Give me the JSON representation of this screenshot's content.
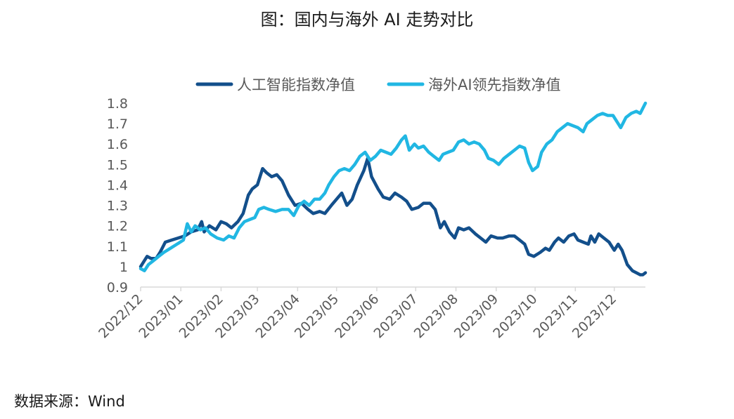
{
  "title": "图：国内与海外 AI 走势对比",
  "source": "数据来源：Wind",
  "chart_data": {
    "type": "line",
    "title": "图：国内与海外 AI 走势对比",
    "xlabel": "",
    "ylabel": "",
    "ylim": [
      0.9,
      1.8
    ],
    "yticks": [
      0.9,
      1,
      1.1,
      1.2,
      1.3,
      1.4,
      1.5,
      1.6,
      1.7,
      1.8
    ],
    "ytick_labels": [
      "0.9",
      "1",
      "1.1",
      "1.2",
      "1.3",
      "1.4",
      "1.5",
      "1.6",
      "1.7",
      "1.8"
    ],
    "xlim": [
      "2022-12-01",
      "2023-12-25"
    ],
    "xticks": [
      "2022-12-01",
      "2023-01-01",
      "2023-02-01",
      "2023-03-01",
      "2023-04-01",
      "2023-05-01",
      "2023-06-01",
      "2023-07-01",
      "2023-08-01",
      "2023-09-01",
      "2023-10-01",
      "2023-11-01",
      "2023-12-01"
    ],
    "xtick_labels": [
      "2022/12",
      "2023/01",
      "2023/02",
      "2023/03",
      "2023/04",
      "2023/05",
      "2023/06",
      "2023/07",
      "2023/08",
      "2023/09",
      "2023/10",
      "2023/11",
      "2023/12"
    ],
    "grid": false,
    "legend_position": "top",
    "series": [
      {
        "name": "人工智能指数净值",
        "color": "#134F8B",
        "points": [
          [
            "2022-12-01",
            1.0
          ],
          [
            "2022-12-04",
            1.03
          ],
          [
            "2022-12-06",
            1.05
          ],
          [
            "2022-12-09",
            1.04
          ],
          [
            "2022-12-13",
            1.04
          ],
          [
            "2022-12-16",
            1.07
          ],
          [
            "2022-12-20",
            1.12
          ],
          [
            "2022-12-25",
            1.13
          ],
          [
            "2022-12-30",
            1.14
          ],
          [
            "2023-01-04",
            1.15
          ],
          [
            "2023-01-09",
            1.17
          ],
          [
            "2023-01-14",
            1.18
          ],
          [
            "2023-01-17",
            1.22
          ],
          [
            "2023-01-19",
            1.17
          ],
          [
            "2023-01-23",
            1.2
          ],
          [
            "2023-01-28",
            1.18
          ],
          [
            "2023-02-01",
            1.22
          ],
          [
            "2023-02-05",
            1.21
          ],
          [
            "2023-02-09",
            1.19
          ],
          [
            "2023-02-14",
            1.22
          ],
          [
            "2023-02-18",
            1.26
          ],
          [
            "2023-02-22",
            1.35
          ],
          [
            "2023-02-25",
            1.38
          ],
          [
            "2023-03-01",
            1.4
          ],
          [
            "2023-03-05",
            1.48
          ],
          [
            "2023-03-08",
            1.46
          ],
          [
            "2023-03-12",
            1.44
          ],
          [
            "2023-03-16",
            1.45
          ],
          [
            "2023-03-20",
            1.42
          ],
          [
            "2023-03-25",
            1.35
          ],
          [
            "2023-03-30",
            1.3
          ],
          [
            "2023-04-04",
            1.31
          ],
          [
            "2023-04-09",
            1.28
          ],
          [
            "2023-04-13",
            1.26
          ],
          [
            "2023-04-18",
            1.27
          ],
          [
            "2023-04-22",
            1.26
          ],
          [
            "2023-04-27",
            1.3
          ],
          [
            "2023-05-01",
            1.33
          ],
          [
            "2023-05-05",
            1.36
          ],
          [
            "2023-05-09",
            1.3
          ],
          [
            "2023-05-13",
            1.33
          ],
          [
            "2023-05-17",
            1.4
          ],
          [
            "2023-05-22",
            1.47
          ],
          [
            "2023-05-25",
            1.53
          ],
          [
            "2023-05-28",
            1.44
          ],
          [
            "2023-06-02",
            1.38
          ],
          [
            "2023-06-06",
            1.34
          ],
          [
            "2023-06-11",
            1.33
          ],
          [
            "2023-06-15",
            1.36
          ],
          [
            "2023-06-20",
            1.34
          ],
          [
            "2023-06-24",
            1.32
          ],
          [
            "2023-06-28",
            1.28
          ],
          [
            "2023-07-03",
            1.29
          ],
          [
            "2023-07-07",
            1.31
          ],
          [
            "2023-07-12",
            1.31
          ],
          [
            "2023-07-16",
            1.28
          ],
          [
            "2023-07-20",
            1.19
          ],
          [
            "2023-07-23",
            1.22
          ],
          [
            "2023-07-27",
            1.17
          ],
          [
            "2023-07-31",
            1.14
          ],
          [
            "2023-08-03",
            1.19
          ],
          [
            "2023-08-07",
            1.18
          ],
          [
            "2023-08-11",
            1.19
          ],
          [
            "2023-08-16",
            1.16
          ],
          [
            "2023-08-20",
            1.14
          ],
          [
            "2023-08-24",
            1.12
          ],
          [
            "2023-08-28",
            1.15
          ],
          [
            "2023-09-02",
            1.14
          ],
          [
            "2023-09-06",
            1.14
          ],
          [
            "2023-09-11",
            1.15
          ],
          [
            "2023-09-15",
            1.15
          ],
          [
            "2023-09-19",
            1.13
          ],
          [
            "2023-09-23",
            1.11
          ],
          [
            "2023-09-26",
            1.06
          ],
          [
            "2023-09-30",
            1.05
          ],
          [
            "2023-10-05",
            1.07
          ],
          [
            "2023-10-09",
            1.09
          ],
          [
            "2023-10-12",
            1.08
          ],
          [
            "2023-10-16",
            1.12
          ],
          [
            "2023-10-19",
            1.14
          ],
          [
            "2023-10-23",
            1.12
          ],
          [
            "2023-10-27",
            1.15
          ],
          [
            "2023-10-31",
            1.16
          ],
          [
            "2023-11-03",
            1.13
          ],
          [
            "2023-11-07",
            1.12
          ],
          [
            "2023-11-11",
            1.11
          ],
          [
            "2023-11-13",
            1.15
          ],
          [
            "2023-11-16",
            1.12
          ],
          [
            "2023-11-19",
            1.16
          ],
          [
            "2023-11-23",
            1.14
          ],
          [
            "2023-11-27",
            1.12
          ],
          [
            "2023-12-01",
            1.08
          ],
          [
            "2023-12-04",
            1.11
          ],
          [
            "2023-12-07",
            1.08
          ],
          [
            "2023-12-11",
            1.01
          ],
          [
            "2023-12-15",
            0.98
          ],
          [
            "2023-12-18",
            0.97
          ],
          [
            "2023-12-21",
            0.96
          ],
          [
            "2023-12-23",
            0.96
          ],
          [
            "2023-12-25",
            0.97
          ]
        ]
      },
      {
        "name": "海外AI领先指数净值",
        "color": "#21B7E3",
        "points": [
          [
            "2022-12-01",
            0.99
          ],
          [
            "2022-12-04",
            0.98
          ],
          [
            "2022-12-07",
            1.01
          ],
          [
            "2022-12-11",
            1.03
          ],
          [
            "2022-12-15",
            1.05
          ],
          [
            "2022-12-19",
            1.07
          ],
          [
            "2022-12-24",
            1.09
          ],
          [
            "2022-12-29",
            1.11
          ],
          [
            "2023-01-03",
            1.13
          ],
          [
            "2023-01-06",
            1.21
          ],
          [
            "2023-01-09",
            1.17
          ],
          [
            "2023-01-12",
            1.2
          ],
          [
            "2023-01-16",
            1.18
          ],
          [
            "2023-01-20",
            1.19
          ],
          [
            "2023-01-24",
            1.16
          ],
          [
            "2023-01-29",
            1.14
          ],
          [
            "2023-02-03",
            1.13
          ],
          [
            "2023-02-07",
            1.15
          ],
          [
            "2023-02-11",
            1.14
          ],
          [
            "2023-02-15",
            1.19
          ],
          [
            "2023-02-19",
            1.22
          ],
          [
            "2023-02-23",
            1.23
          ],
          [
            "2023-02-27",
            1.24
          ],
          [
            "2023-03-02",
            1.28
          ],
          [
            "2023-03-06",
            1.29
          ],
          [
            "2023-03-10",
            1.28
          ],
          [
            "2023-03-15",
            1.27
          ],
          [
            "2023-03-20",
            1.28
          ],
          [
            "2023-03-25",
            1.28
          ],
          [
            "2023-03-29",
            1.25
          ],
          [
            "2023-04-02",
            1.3
          ],
          [
            "2023-04-06",
            1.32
          ],
          [
            "2023-04-10",
            1.3
          ],
          [
            "2023-04-14",
            1.33
          ],
          [
            "2023-04-18",
            1.33
          ],
          [
            "2023-04-22",
            1.36
          ],
          [
            "2023-04-25",
            1.4
          ],
          [
            "2023-04-29",
            1.44
          ],
          [
            "2023-05-03",
            1.47
          ],
          [
            "2023-05-07",
            1.48
          ],
          [
            "2023-05-11",
            1.47
          ],
          [
            "2023-05-15",
            1.5
          ],
          [
            "2023-05-19",
            1.54
          ],
          [
            "2023-05-23",
            1.56
          ],
          [
            "2023-05-27",
            1.52
          ],
          [
            "2023-05-31",
            1.54
          ],
          [
            "2023-06-04",
            1.57
          ],
          [
            "2023-06-08",
            1.56
          ],
          [
            "2023-06-12",
            1.55
          ],
          [
            "2023-06-16",
            1.58
          ],
          [
            "2023-06-20",
            1.62
          ],
          [
            "2023-06-23",
            1.64
          ],
          [
            "2023-06-26",
            1.57
          ],
          [
            "2023-06-30",
            1.6
          ],
          [
            "2023-07-03",
            1.58
          ],
          [
            "2023-07-07",
            1.59
          ],
          [
            "2023-07-11",
            1.56
          ],
          [
            "2023-07-15",
            1.54
          ],
          [
            "2023-07-19",
            1.52
          ],
          [
            "2023-07-22",
            1.55
          ],
          [
            "2023-07-26",
            1.56
          ],
          [
            "2023-07-30",
            1.57
          ],
          [
            "2023-08-03",
            1.61
          ],
          [
            "2023-08-07",
            1.62
          ],
          [
            "2023-08-11",
            1.6
          ],
          [
            "2023-08-15",
            1.61
          ],
          [
            "2023-08-19",
            1.6
          ],
          [
            "2023-08-23",
            1.57
          ],
          [
            "2023-08-26",
            1.53
          ],
          [
            "2023-08-30",
            1.52
          ],
          [
            "2023-09-03",
            1.5
          ],
          [
            "2023-09-07",
            1.53
          ],
          [
            "2023-09-11",
            1.55
          ],
          [
            "2023-09-15",
            1.57
          ],
          [
            "2023-09-19",
            1.59
          ],
          [
            "2023-09-23",
            1.58
          ],
          [
            "2023-09-26",
            1.51
          ],
          [
            "2023-09-29",
            1.47
          ],
          [
            "2023-10-03",
            1.49
          ],
          [
            "2023-10-06",
            1.56
          ],
          [
            "2023-10-10",
            1.6
          ],
          [
            "2023-10-14",
            1.62
          ],
          [
            "2023-10-18",
            1.66
          ],
          [
            "2023-10-22",
            1.68
          ],
          [
            "2023-10-26",
            1.7
          ],
          [
            "2023-10-30",
            1.69
          ],
          [
            "2023-11-03",
            1.68
          ],
          [
            "2023-11-07",
            1.66
          ],
          [
            "2023-11-10",
            1.7
          ],
          [
            "2023-11-14",
            1.72
          ],
          [
            "2023-11-18",
            1.74
          ],
          [
            "2023-11-22",
            1.75
          ],
          [
            "2023-11-26",
            1.74
          ],
          [
            "2023-11-30",
            1.74
          ],
          [
            "2023-12-03",
            1.71
          ],
          [
            "2023-12-06",
            1.68
          ],
          [
            "2023-12-10",
            1.73
          ],
          [
            "2023-12-14",
            1.75
          ],
          [
            "2023-12-18",
            1.76
          ],
          [
            "2023-12-21",
            1.75
          ],
          [
            "2023-12-25",
            1.8
          ]
        ]
      }
    ]
  }
}
